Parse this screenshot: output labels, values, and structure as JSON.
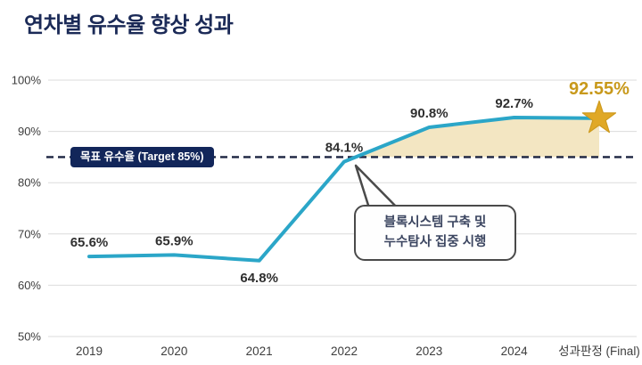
{
  "title": "연차별 유수율 향상 성과",
  "target_box": {
    "label": "목표 유수율 (Target 85%)"
  },
  "callout": {
    "line1": "블록시스템 구축 및",
    "line2": "누수탐사 집중 시행"
  },
  "colors": {
    "title_navy": "#1B2A57",
    "line_teal": "#2BA6C8",
    "area_tan": "#F3E6C2",
    "star_gold": "#E0A826",
    "star_gold_stroke": "#CE9A1D",
    "gold_text": "#C8991B",
    "dash_navy": "#1B2340",
    "grid_gray": "#DBDBDB",
    "label_dark": "#2F2F2F",
    "axis_text": "#3D3D3D"
  },
  "chart_data": {
    "type": "line",
    "title": "연차별 유수율 향상 성과",
    "categories": [
      "2019",
      "2020",
      "2021",
      "2022",
      "2023",
      "2024",
      "성과판정 (Final)"
    ],
    "values": [
      65.6,
      65.9,
      64.8,
      84.1,
      90.8,
      92.7,
      92.55
    ],
    "point_labels": [
      "65.6%",
      "65.9%",
      "64.8%",
      "84.1%",
      "90.8%",
      "92.7%",
      "92.55%"
    ],
    "label_positions": [
      "above",
      "above",
      "below",
      "above",
      "above",
      "above",
      "above"
    ],
    "target_value": 85,
    "target_label": "목표 유수율 (Target 85%)",
    "ylim": [
      50,
      100
    ],
    "yticks": [
      50,
      60,
      70,
      80,
      90,
      100
    ],
    "ytick_suffix": "%",
    "grid": true,
    "legend": false,
    "fill_above_target": true,
    "final_marker": "star",
    "annotation": {
      "lines": [
        "블록시스템 구축 및",
        "누수탐사 집중 시행"
      ],
      "points_to": "2022"
    }
  }
}
